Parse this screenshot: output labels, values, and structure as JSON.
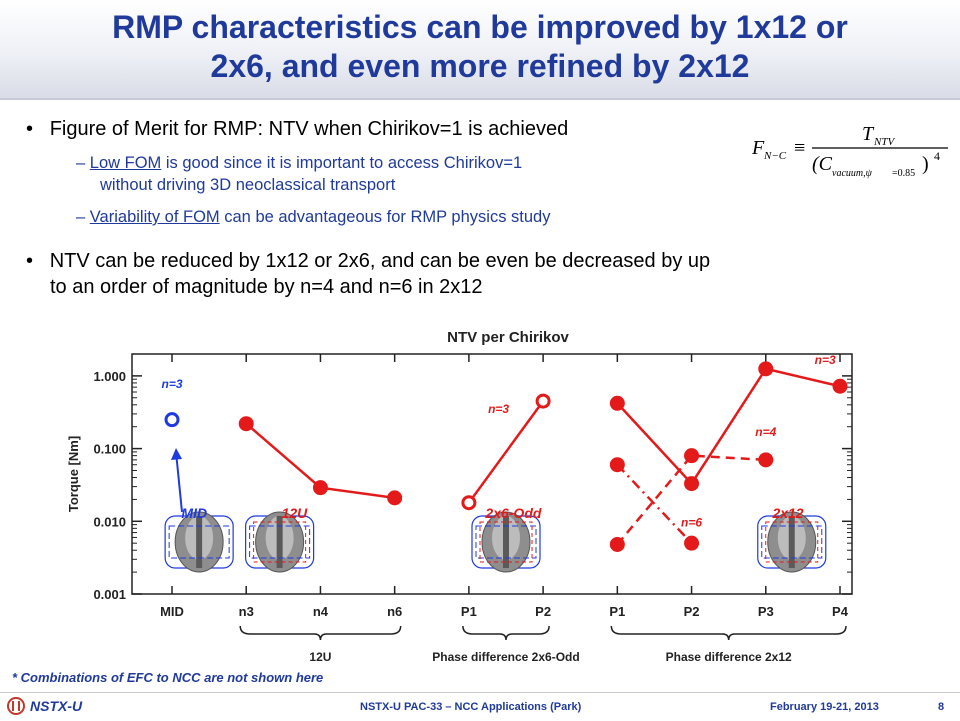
{
  "slide": {
    "title_line1": "RMP characteristics can be improved by 1x12 or",
    "title_line2": "2x6, and even more refined by 2x12",
    "bullet1": "Figure of Merit for RMP: NTV when Chirikov=1 is achieved",
    "sub1_underlined": "Low FOM",
    "sub1_rest": " is good since it is important to access Chirikov=1",
    "sub1_line2": "without driving 3D neoclassical transport",
    "sub2_underlined": "Variability of FOM",
    "sub2_rest": " can be advantageous for RMP physics study",
    "bullet2_line1": "NTV can be reduced by 1x12 or 2x6, and can be even be decreased by up",
    "bullet2_line2": "to an order of magnitude by n=4 and n=6 in 2x12",
    "footnote": "* Combinations of EFC to NCC are not shown here",
    "footer_logo": "NSTX-U",
    "footer_center": "NSTX-U PAC-33 – NCC Applications (Park)",
    "footer_date": "February 19-21, 2013",
    "page_number": "8"
  },
  "formula": {
    "lhs_main": "F",
    "lhs_sub": "N−C",
    "equiv": "≡",
    "numerator_main": "T",
    "numerator_sub": "NTV",
    "denominator_main": "(C",
    "denominator_sub": "vacuum,ψ",
    "denominator_sub2": "=0.85",
    "denominator_close": ")",
    "exponent": "4"
  },
  "chart_data": {
    "type": "scatter",
    "title": "NTV per Chirikov",
    "ylabel": "Torque [Nm]",
    "yscale": "log",
    "ylim": [
      0.001,
      2.0
    ],
    "yticks": [
      {
        "value": 0.001,
        "label": "0.001"
      },
      {
        "value": 0.01,
        "label": "0.010"
      },
      {
        "value": 0.1,
        "label": "0.100"
      },
      {
        "value": 1.0,
        "label": "1.000"
      }
    ],
    "categories": [
      "MID",
      "n3",
      "n4",
      "n6",
      "P1",
      "P2",
      "P1",
      "P2",
      "P3",
      "P4"
    ],
    "series": [
      {
        "group": "MID",
        "marker": "open-circle",
        "color": "#1f3adf",
        "line": "none",
        "points": [
          {
            "x": 0,
            "y": 0.25
          }
        ]
      },
      {
        "group": "12U",
        "marker": "filled-circle",
        "color": "#e41a1a",
        "line": "solid",
        "points": [
          {
            "x": 1,
            "y": 0.22
          },
          {
            "x": 2,
            "y": 0.029
          },
          {
            "x": 3,
            "y": 0.021
          }
        ]
      },
      {
        "group": "2x6-Odd",
        "marker": "open-circle",
        "color": "#e41a1a",
        "line": "solid",
        "points": [
          {
            "x": 4,
            "y": 0.018
          },
          {
            "x": 5,
            "y": 0.45
          }
        ]
      },
      {
        "name": "n=3",
        "group": "2x12",
        "marker": "filled-circle",
        "color": "#e41a1a",
        "line": "solid",
        "points": [
          {
            "x": 6,
            "y": 0.42
          },
          {
            "x": 7,
            "y": 0.033
          },
          {
            "x": 8,
            "y": 1.25
          },
          {
            "x": 9,
            "y": 0.72
          }
        ]
      },
      {
        "name": "n=4",
        "group": "2x12",
        "marker": "filled-circle",
        "color": "#e41a1a",
        "line": "dashed",
        "points": [
          {
            "x": 6,
            "y": 0.0048
          },
          {
            "x": 7,
            "y": 0.08
          },
          {
            "x": 8,
            "y": 0.07
          }
        ]
      },
      {
        "name": "n=6",
        "group": "2x12",
        "marker": "filled-circle",
        "color": "#e41a1a",
        "line": "dashdot",
        "points": [
          {
            "x": 6,
            "y": 0.06
          },
          {
            "x": 7,
            "y": 0.005
          }
        ]
      }
    ],
    "annotations": [
      {
        "text": "n=3",
        "x": 0,
        "y": 0.68,
        "color": "#1f3adf"
      },
      {
        "text": "n=3",
        "x": 4.4,
        "y": 0.31,
        "color": "#e41a1a"
      },
      {
        "text": "n=3",
        "x": 8.8,
        "y": 1.45,
        "color": "#e41a1a"
      },
      {
        "text": "n=4",
        "x": 8.0,
        "y": 0.15,
        "color": "#e41a1a"
      },
      {
        "text": "n=6",
        "x": 7.0,
        "y": 0.0085,
        "color": "#e41a1a"
      }
    ],
    "config_labels": [
      {
        "text": "MID",
        "x": 0.3,
        "color": "#1f3adf"
      },
      {
        "text": "12U",
        "x": 1.65,
        "color": "#e41a1a"
      },
      {
        "text": "2x6-Odd",
        "x": 4.6,
        "color": "#e41a1a"
      },
      {
        "text": "2x12",
        "x": 8.3,
        "color": "#e41a1a"
      }
    ],
    "group_brackets": [
      {
        "text": "12U",
        "from": 1,
        "to": 3
      },
      {
        "text": "Phase difference 2x6-Odd",
        "from": 4,
        "to": 5
      },
      {
        "text": "Phase difference 2x12",
        "from": 6,
        "to": 9
      }
    ]
  }
}
